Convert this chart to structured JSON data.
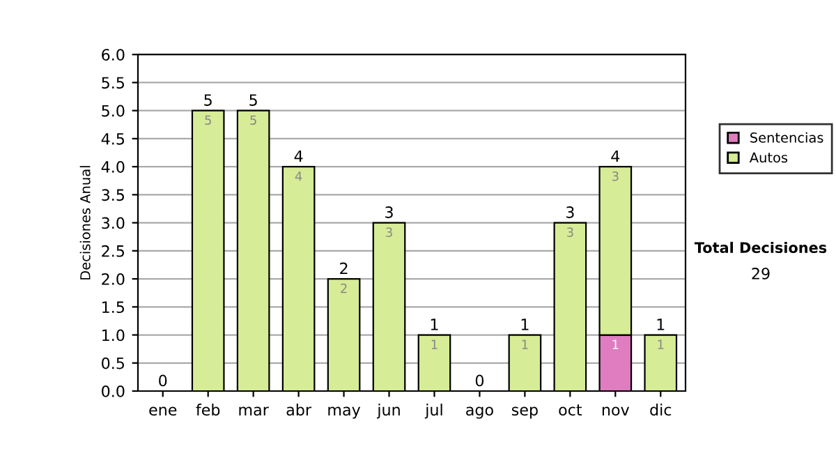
{
  "chart_data": {
    "type": "bar",
    "stacked": true,
    "ylabel": "Decisiones Anual",
    "categories": [
      "ene",
      "feb",
      "mar",
      "abr",
      "may",
      "jun",
      "jul",
      "ago",
      "sep",
      "oct",
      "nov",
      "dic"
    ],
    "series": [
      {
        "name": "Sentencias",
        "color": "#e07cc0",
        "values": [
          0,
          0,
          0,
          0,
          0,
          0,
          0,
          0,
          0,
          0,
          1,
          0
        ],
        "value_labels": [
          null,
          null,
          null,
          null,
          null,
          null,
          null,
          null,
          null,
          null,
          "1",
          null
        ]
      },
      {
        "name": "Autos",
        "color": "#d6ec96",
        "values": [
          0,
          5,
          5,
          4,
          2,
          3,
          1,
          0,
          1,
          3,
          3,
          1
        ],
        "value_labels": [
          null,
          "5",
          "5",
          "4",
          "2",
          "3",
          "1",
          null,
          "1",
          "3",
          "3",
          "1"
        ]
      }
    ],
    "totals": [
      "0",
      "5",
      "5",
      "4",
      "2",
      "3",
      "1",
      "0",
      "1",
      "3",
      "4",
      "1"
    ],
    "ylim": [
      0,
      6
    ],
    "yticks": [
      {
        "value": 0,
        "label": "0.0"
      },
      {
        "value": 0.5,
        "label": "0.5"
      },
      {
        "value": 1,
        "label": "1.0"
      },
      {
        "value": 1.5,
        "label": "1.5"
      },
      {
        "value": 2,
        "label": "2.0"
      },
      {
        "value": 2.5,
        "label": "2.5"
      },
      {
        "value": 3,
        "label": "3.0"
      },
      {
        "value": 3.5,
        "label": "3.5"
      },
      {
        "value": 4,
        "label": "4.0"
      },
      {
        "value": 4.5,
        "label": "4.5"
      },
      {
        "value": 5,
        "label": "5.0"
      },
      {
        "value": 5.5,
        "label": "5.5"
      },
      {
        "value": 6,
        "label": "6.0"
      }
    ],
    "grid": "y",
    "legend": "right",
    "annotations": [
      "Total Decisiones",
      "29"
    ]
  }
}
